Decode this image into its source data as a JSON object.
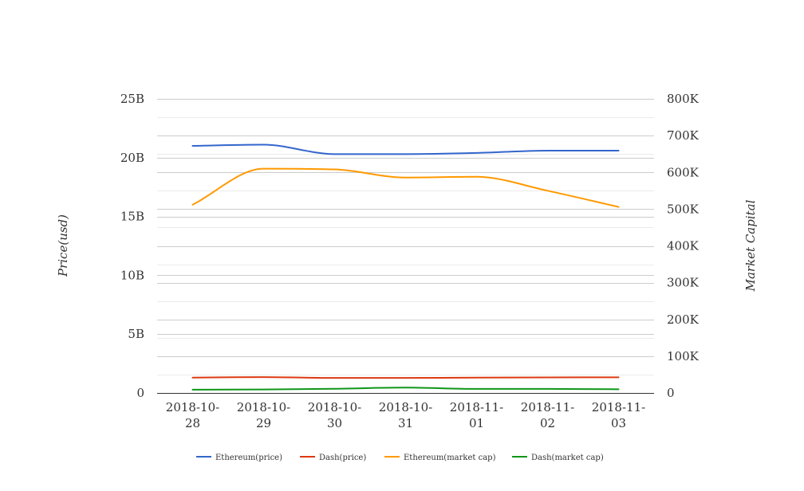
{
  "chart_data": {
    "type": "line",
    "x": [
      "2018-10-28",
      "2018-10-29",
      "2018-10-30",
      "2018-10-31",
      "2018-11-01",
      "2018-11-02",
      "2018-11-03"
    ],
    "x_tick_labels": [
      [
        "2018-10-",
        "28"
      ],
      [
        "2018-10-",
        "29"
      ],
      [
        "2018-10-",
        "30"
      ],
      [
        "2018-10-",
        "31"
      ],
      [
        "2018-11-",
        "01"
      ],
      [
        "2018-11-",
        "02"
      ],
      [
        "2018-11-",
        "03"
      ]
    ],
    "ylabel_left": "Price(usd)",
    "ylabel_right": "Market Capital",
    "y_left": {
      "lim": [
        0,
        25000000000
      ],
      "ticks": [
        0,
        5000000000,
        10000000000,
        15000000000,
        20000000000,
        25000000000
      ],
      "tick_labels": [
        "0",
        "5B",
        "10B",
        "15B",
        "20B",
        "25B"
      ]
    },
    "y_right": {
      "lim": [
        0,
        800000
      ],
      "ticks": [
        0,
        100000,
        200000,
        300000,
        400000,
        500000,
        600000,
        700000,
        800000
      ],
      "tick_labels": [
        "0",
        "100K",
        "200K",
        "300K",
        "400K",
        "500K",
        "600K",
        "700K",
        "800K"
      ]
    },
    "grid": true,
    "legend_position": "bottom",
    "series": [
      {
        "name": "Ethereum(price)",
        "axis": "left",
        "color": "#3366cc",
        "values": [
          21000000000,
          21100000000,
          20300000000,
          20300000000,
          20400000000,
          20600000000,
          20600000000
        ]
      },
      {
        "name": "Dash(price)",
        "axis": "left",
        "color": "#dc3912",
        "values": [
          1300000000,
          1350000000,
          1280000000,
          1280000000,
          1300000000,
          1320000000,
          1330000000
        ]
      },
      {
        "name": "Ethereum(market cap)",
        "axis": "right",
        "color": "#ff9900",
        "values": [
          512000,
          610000,
          608000,
          586000,
          588000,
          550000,
          506000
        ]
      },
      {
        "name": "Dash(market cap)",
        "axis": "right",
        "color": "#109618",
        "values": [
          9000,
          9500,
          11500,
          14500,
          11000,
          11000,
          10000
        ]
      }
    ]
  }
}
